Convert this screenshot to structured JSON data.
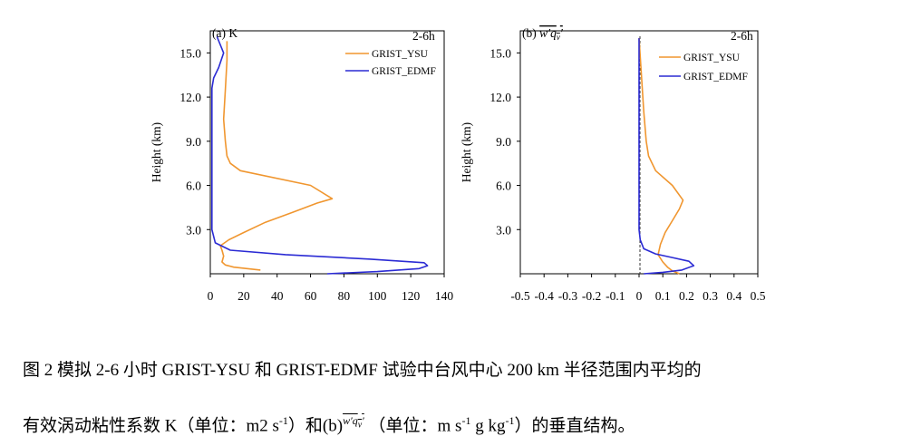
{
  "chart_data": [
    {
      "type": "line",
      "title": "(a) K",
      "time_label": "2-6h",
      "ylabel": "Height (km)",
      "xlim": [
        0,
        140
      ],
      "ylim": [
        0,
        16.5
      ],
      "xticks": [
        "0",
        "20",
        "40",
        "60",
        "80",
        "100",
        "120",
        "140"
      ],
      "yticks": [
        "3.0",
        "6.0",
        "9.0",
        "12.0",
        "15.0"
      ],
      "ytick_values": [
        3,
        6,
        9,
        12,
        15
      ],
      "series": [
        {
          "name": "GRIST_YSU",
          "color": "#f0962f",
          "x": [
            30,
            14,
            9,
            7,
            8,
            7,
            6,
            11,
            20,
            33,
            50,
            64,
            73,
            60,
            18,
            12,
            10,
            9,
            8,
            9,
            10,
            10
          ],
          "y": [
            0.25,
            0.45,
            0.6,
            0.8,
            1.2,
            1.6,
            1.9,
            2.3,
            2.8,
            3.5,
            4.2,
            4.8,
            5.1,
            6.0,
            7.0,
            7.5,
            8.0,
            9.0,
            10.5,
            12.5,
            14.5,
            15.8
          ]
        },
        {
          "name": "GRIST_EDMF",
          "color": "#2b2bd4",
          "x": [
            70,
            100,
            125,
            130,
            128,
            95,
            45,
            12,
            3,
            1,
            1,
            1,
            1,
            1,
            1,
            2,
            5,
            8,
            4
          ],
          "y": [
            0.0,
            0.15,
            0.35,
            0.55,
            0.75,
            1.0,
            1.3,
            1.6,
            2.1,
            3.0,
            5.0,
            8.0,
            11.0,
            12.0,
            12.6,
            13.3,
            14.0,
            15.0,
            16.1
          ]
        }
      ]
    },
    {
      "type": "line",
      "title": "(b) w'qv'",
      "time_label": "2-6h",
      "ylabel": "Height (km)",
      "xlim": [
        -0.5,
        0.5
      ],
      "ylim": [
        0,
        16.5
      ],
      "xticks": [
        "-0.5",
        "-0.4",
        "-0.3",
        "-0.2",
        "-0.1",
        "0",
        "0.1",
        "0.2",
        "0.3",
        "0.4",
        "0.5"
      ],
      "yticks": [
        "3.0",
        "6.0",
        "9.0",
        "12.0",
        "15.0"
      ],
      "ytick_values": [
        3,
        6,
        9,
        12,
        15
      ],
      "series": [
        {
          "name": "GRIST_YSU",
          "color": "#f0962f",
          "x": [
            0.17,
            0.14,
            0.12,
            0.1,
            0.08,
            0.09,
            0.11,
            0.14,
            0.17,
            0.185,
            0.14,
            0.07,
            0.04,
            0.03,
            0.02,
            0.01,
            0.0
          ],
          "y": [
            0.0,
            0.2,
            0.45,
            0.8,
            1.3,
            2.0,
            2.8,
            3.6,
            4.4,
            5.0,
            6.0,
            7.0,
            8.0,
            9.0,
            11.0,
            13.5,
            16.0
          ]
        },
        {
          "name": "GRIST_EDMF",
          "color": "#2b2bd4",
          "x": [
            0.02,
            0.1,
            0.18,
            0.23,
            0.21,
            0.14,
            0.07,
            0.02,
            0.005,
            0.0,
            0.0,
            0.0
          ],
          "y": [
            0.0,
            0.1,
            0.25,
            0.55,
            0.85,
            1.1,
            1.35,
            1.7,
            2.3,
            3.0,
            8.0,
            16.0
          ]
        }
      ]
    }
  ],
  "caption": {
    "line1": "图 2  模拟 2-6 小时 GRIST-YSU 和 GRIST-EDMF 试验中台风中心 200 km 半径范围内平均的",
    "line2_a": "有效涡动粘性系数 K（单位：m2 s",
    "line2_b": "-1",
    "line2_c": "）和(b)",
    "line2_d": "w′q",
    "line2_e": "v",
    "line2_f": "′",
    "line2_g": "（单位：m s",
    "line2_h": "-1",
    "line2_i": " g kg",
    "line2_j": "-1",
    "line2_k": "）的垂直结构。"
  }
}
